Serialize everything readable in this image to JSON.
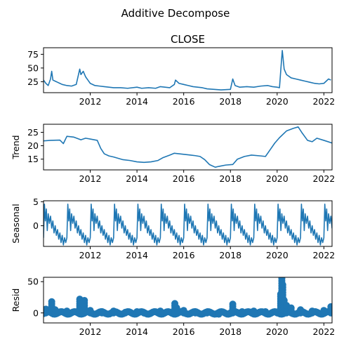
{
  "figure": {
    "suptitle": "Additive Decompose"
  },
  "chart_data": [
    {
      "type": "line",
      "title": "CLOSE",
      "ylabel": "",
      "xlim": [
        2010.0,
        2022.35
      ],
      "ylim": [
        5,
        87
      ],
      "xticks": [
        2012,
        2014,
        2016,
        2018,
        2020,
        2022
      ],
      "xtick_labels": [
        "2012",
        "2014",
        "2016",
        "2018",
        "2020",
        "2022"
      ],
      "yticks": [
        25,
        50,
        75
      ],
      "ytick_labels": [
        "25",
        "50",
        "75"
      ],
      "x": [
        2010.0,
        2010.1,
        2010.2,
        2010.3,
        2010.35,
        2010.4,
        2010.5,
        2010.6,
        2010.7,
        2010.8,
        2011.0,
        2011.2,
        2011.4,
        2011.55,
        2011.6,
        2011.7,
        2011.8,
        2011.9,
        2012.0,
        2012.2,
        2012.4,
        2012.6,
        2012.8,
        2013.0,
        2013.3,
        2013.6,
        2014.0,
        2014.2,
        2014.5,
        2014.8,
        2015.0,
        2015.4,
        2015.6,
        2015.65,
        2015.8,
        2016.0,
        2016.2,
        2016.4,
        2016.6,
        2016.8,
        2017.0,
        2017.3,
        2017.6,
        2018.0,
        2018.1,
        2018.2,
        2018.4,
        2018.7,
        2019.0,
        2019.3,
        2019.6,
        2019.8,
        2020.0,
        2020.1,
        2020.18,
        2020.22,
        2020.3,
        2020.4,
        2020.6,
        2020.8,
        2021.0,
        2021.2,
        2021.4,
        2021.6,
        2021.8,
        2022.0,
        2022.2,
        2022.3
      ],
      "y": [
        28,
        22,
        18,
        30,
        44,
        28,
        26,
        24,
        22,
        20,
        18,
        17,
        20,
        48,
        38,
        44,
        34,
        28,
        22,
        18,
        17,
        16,
        15,
        14,
        14,
        13,
        15,
        13,
        14,
        13,
        16,
        14,
        20,
        28,
        22,
        20,
        18,
        16,
        15,
        14,
        12,
        11,
        10,
        11,
        30,
        18,
        15,
        16,
        15,
        17,
        18,
        16,
        15,
        14,
        60,
        82,
        48,
        38,
        32,
        30,
        28,
        26,
        24,
        22,
        21,
        22,
        30,
        28
      ]
    },
    {
      "type": "line",
      "title": "",
      "ylabel": "Trend",
      "xlim": [
        2010.0,
        2022.35
      ],
      "ylim": [
        11,
        28
      ],
      "xticks": [
        2012,
        2014,
        2016,
        2018,
        2020,
        2022
      ],
      "xtick_labels": [
        "2012",
        "2014",
        "2016",
        "2018",
        "2020",
        "2022"
      ],
      "yticks": [
        15,
        20,
        25
      ],
      "ytick_labels": [
        "15",
        "20",
        "25"
      ],
      "x": [
        2010.0,
        2010.3,
        2010.7,
        2010.85,
        2011.0,
        2011.3,
        2011.6,
        2011.8,
        2012.0,
        2012.3,
        2012.45,
        2012.6,
        2012.8,
        2013.0,
        2013.4,
        2013.7,
        2014.0,
        2014.3,
        2014.6,
        2014.9,
        2015.1,
        2015.4,
        2015.6,
        2015.8,
        2016.0,
        2016.3,
        2016.5,
        2016.7,
        2016.9,
        2017.1,
        2017.35,
        2017.5,
        2017.8,
        2018.1,
        2018.3,
        2018.6,
        2018.9,
        2019.3,
        2019.5,
        2019.7,
        2019.9,
        2020.1,
        2020.4,
        2020.7,
        2020.9,
        2021.05,
        2021.3,
        2021.5,
        2021.7,
        2022.0,
        2022.35
      ],
      "y": [
        21.8,
        22.0,
        22.1,
        20.8,
        23.5,
        23.2,
        22.2,
        22.8,
        22.5,
        22.0,
        19.0,
        17.0,
        16.2,
        15.8,
        14.8,
        14.5,
        14.0,
        13.8,
        14.0,
        14.5,
        15.5,
        16.5,
        17.2,
        17.0,
        16.8,
        16.5,
        16.3,
        16.0,
        14.8,
        13.0,
        12.0,
        12.3,
        12.8,
        13.0,
        15.0,
        16.0,
        16.5,
        16.2,
        16.0,
        18.5,
        21.0,
        23.0,
        25.5,
        26.5,
        27.0,
        25.0,
        22.0,
        21.5,
        22.8,
        22.0,
        21.0
      ]
    },
    {
      "type": "line",
      "title": "",
      "ylabel": "Seasonal",
      "xlim": [
        2010.0,
        2022.35
      ],
      "ylim": [
        -4.3,
        5.2
      ],
      "xticks": [
        2012,
        2014,
        2016,
        2018,
        2020,
        2022
      ],
      "xtick_labels": [
        "2012",
        "2014",
        "2016",
        "2018",
        "2020",
        "2022"
      ],
      "yticks": [
        0,
        5
      ],
      "ytick_labels": [
        "0",
        "5"
      ],
      "period": 1.0,
      "pattern_phase": [
        0.0,
        0.04,
        0.08,
        0.12,
        0.16,
        0.2,
        0.25,
        0.3,
        0.35,
        0.4,
        0.45,
        0.5,
        0.55,
        0.6,
        0.65,
        0.7,
        0.75,
        0.8,
        0.85,
        0.9,
        0.95,
        1.0
      ],
      "pattern_values": [
        -2.5,
        4.5,
        1.0,
        3.5,
        -1.0,
        2.5,
        0.5,
        2.0,
        -0.5,
        1.0,
        -1.5,
        0.0,
        -2.0,
        -0.8,
        -2.8,
        -1.5,
        -3.5,
        -2.0,
        -4.0,
        -2.5,
        -3.5,
        -2.5
      ]
    },
    {
      "type": "scatter",
      "title": "",
      "ylabel": "Resid",
      "xlim": [
        2010.0,
        2022.35
      ],
      "ylim": [
        -16,
        57
      ],
      "xticks": [
        2012,
        2014,
        2016,
        2018,
        2020,
        2022
      ],
      "xtick_labels": [
        "2012",
        "2014",
        "2016",
        "2018",
        "2020",
        "2022"
      ],
      "yticks": [
        0,
        50
      ],
      "ytick_labels": [
        "0",
        "50"
      ],
      "baseline": 0,
      "x": [
        2010.1,
        2010.35,
        2010.5,
        2011.0,
        2011.55,
        2011.65,
        2011.75,
        2012.0,
        2012.5,
        2013.0,
        2013.5,
        2014.0,
        2014.3,
        2015.0,
        2015.62,
        2015.7,
        2016.0,
        2016.5,
        2017.0,
        2017.5,
        2018.0,
        2018.1,
        2018.5,
        2019.0,
        2019.5,
        2020.0,
        2020.15,
        2020.2,
        2020.24,
        2020.3,
        2020.4,
        2020.6,
        2021.0,
        2021.5,
        2022.0,
        2022.3
      ],
      "y": [
        6,
        18,
        5,
        3,
        22,
        15,
        20,
        4,
        2,
        3,
        1,
        2,
        0,
        3,
        15,
        8,
        4,
        2,
        1,
        -2,
        0,
        14,
        2,
        3,
        2,
        1,
        30,
        55,
        45,
        20,
        12,
        8,
        5,
        3,
        4,
        10
      ]
    }
  ]
}
